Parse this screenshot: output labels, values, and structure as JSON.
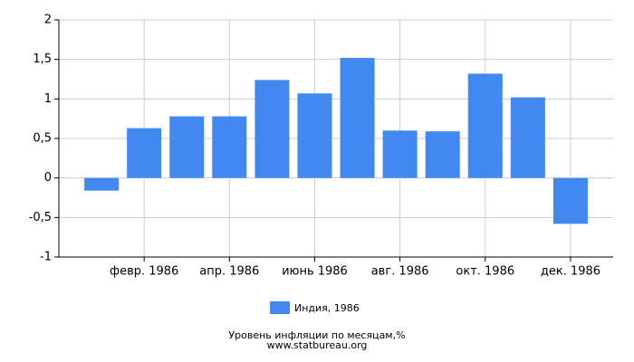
{
  "chart_data": {
    "type": "bar",
    "categories": [
      null,
      "февр. 1986",
      null,
      "апр. 1986",
      null,
      "июнь 1986",
      null,
      "авг. 1986",
      null,
      "окт. 1986",
      null,
      "дек. 1986"
    ],
    "series": [
      {
        "name": "Индия, 1986",
        "color": "#4189f0",
        "values": [
          -0.16,
          0.63,
          0.78,
          0.78,
          1.24,
          1.07,
          1.52,
          0.6,
          0.59,
          1.32,
          1.02,
          -0.58
        ]
      }
    ],
    "ylim": [
      -1,
      2
    ],
    "yticks": [
      -1,
      {
        "value": -0.5,
        "label": "-0,5"
      },
      0,
      {
        "value": 0.5,
        "label": "0,5"
      },
      1,
      {
        "value": 1.5,
        "label": "1,5"
      },
      2
    ],
    "grid": true,
    "caption": "Уровень инфляции по месяцам,%",
    "source": "www.statbureau.org"
  }
}
